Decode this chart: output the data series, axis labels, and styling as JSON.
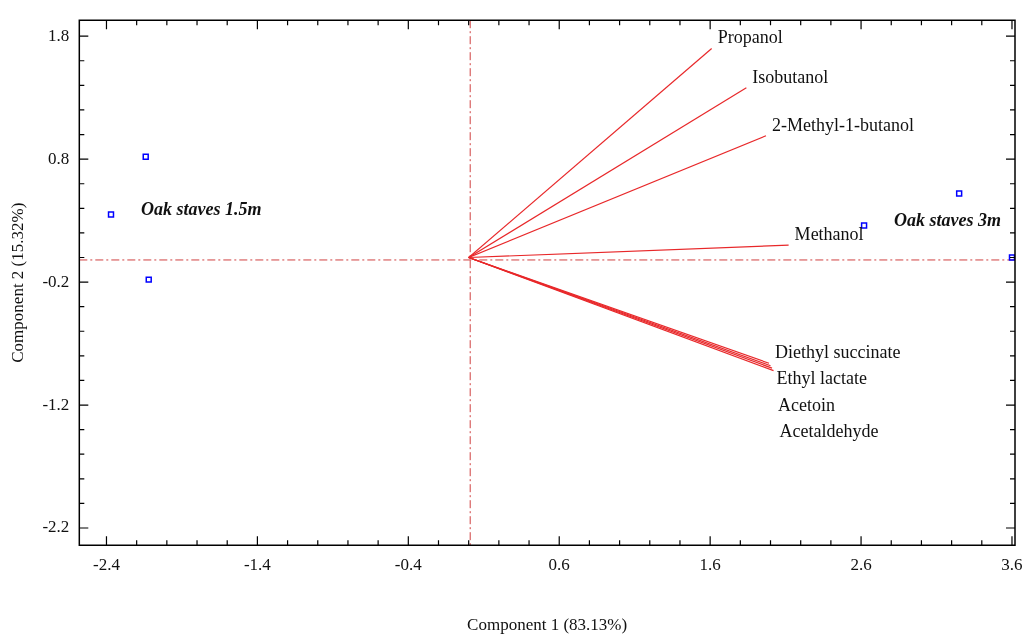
{
  "chart_data": {
    "type": "scatter",
    "xlabel": "Component 1 (83.13%)",
    "ylabel": "Component 2 (15.32%)",
    "xlim": [
      -2.58,
      3.62
    ],
    "ylim": [
      -2.34,
      1.93
    ],
    "xticks": [
      {
        "value": -2.4,
        "label": "-2.4"
      },
      {
        "value": -2.2,
        "label": null
      },
      {
        "value": -2.0,
        "label": null
      },
      {
        "value": -1.8,
        "label": null
      },
      {
        "value": -1.6,
        "label": null
      },
      {
        "value": -1.4,
        "label": "-1.4"
      },
      {
        "value": -1.2,
        "label": null
      },
      {
        "value": -1.0,
        "label": null
      },
      {
        "value": -0.8,
        "label": null
      },
      {
        "value": -0.6,
        "label": null
      },
      {
        "value": -0.4,
        "label": "-0.4"
      },
      {
        "value": -0.2,
        "label": null
      },
      {
        "value": 0,
        "label": null
      },
      {
        "value": 0.2,
        "label": null
      },
      {
        "value": 0.4,
        "label": null
      },
      {
        "value": 0.6,
        "label": "0.6"
      },
      {
        "value": 0.8,
        "label": null
      },
      {
        "value": 1.0,
        "label": null
      },
      {
        "value": 1.2,
        "label": null
      },
      {
        "value": 1.4,
        "label": null
      },
      {
        "value": 1.6,
        "label": "1.6"
      },
      {
        "value": 1.8,
        "label": null
      },
      {
        "value": 2.0,
        "label": null
      },
      {
        "value": 2.2,
        "label": null
      },
      {
        "value": 2.4,
        "label": null
      },
      {
        "value": 2.6,
        "label": "2.6"
      },
      {
        "value": 2.8,
        "label": null
      },
      {
        "value": 3.0,
        "label": null
      },
      {
        "value": 3.2,
        "label": null
      },
      {
        "value": 3.4,
        "label": null
      },
      {
        "value": 3.6,
        "label": "3.6"
      }
    ],
    "yticks": [
      {
        "value": -2.2,
        "label": "-2.2"
      },
      {
        "value": -2.0,
        "label": null
      },
      {
        "value": -1.8,
        "label": null
      },
      {
        "value": -1.6,
        "label": null
      },
      {
        "value": -1.4,
        "label": null
      },
      {
        "value": -1.2,
        "label": "-1.2"
      },
      {
        "value": -1.0,
        "label": null
      },
      {
        "value": -0.8,
        "label": null
      },
      {
        "value": -0.6,
        "label": null
      },
      {
        "value": -0.4,
        "label": null
      },
      {
        "value": -0.2,
        "label": "-0.2"
      },
      {
        "value": 0,
        "label": null
      },
      {
        "value": 0.2,
        "label": null
      },
      {
        "value": 0.4,
        "label": null
      },
      {
        "value": 0.6,
        "label": null
      },
      {
        "value": 0.8,
        "label": "0.8"
      },
      {
        "value": 1.0,
        "label": null
      },
      {
        "value": 1.2,
        "label": null
      },
      {
        "value": 1.4,
        "label": null
      },
      {
        "value": 1.6,
        "label": null
      },
      {
        "value": 1.8,
        "label": "1.8"
      }
    ],
    "grid": false,
    "legend": false,
    "series": [
      {
        "name": "Oak staves 1.5m",
        "marker": "square",
        "color": "#0000ff",
        "x": [
          -2.37,
          -2.14,
          -2.12
        ],
        "values": [
          0.35,
          0.82,
          -0.18
        ]
      },
      {
        "name": "Oak staves 3m",
        "marker": "square",
        "color": "#0000ff",
        "x": [
          2.62,
          3.25,
          3.6
        ],
        "values": [
          0.26,
          0.52,
          0.0
        ]
      },
      {
        "type": "line",
        "color": "#e8282a",
        "x": [
          0,
          1.61
        ],
        "values": [
          0,
          1.7
        ]
      },
      {
        "type": "line",
        "color": "#e8282a",
        "x": [
          0,
          1.84
        ],
        "values": [
          0,
          1.38
        ]
      },
      {
        "type": "line",
        "color": "#e8282a",
        "x": [
          0,
          1.97
        ],
        "values": [
          0,
          0.99
        ]
      },
      {
        "type": "line",
        "color": "#e8282a",
        "x": [
          0,
          2.12
        ],
        "values": [
          0,
          0.1
        ]
      },
      {
        "type": "line",
        "color": "#e8282a",
        "x": [
          0,
          1.99
        ],
        "values": [
          0,
          -0.86
        ]
      },
      {
        "type": "line",
        "color": "#e8282a",
        "x": [
          0,
          2.0
        ],
        "values": [
          0,
          -0.88
        ]
      },
      {
        "type": "line",
        "color": "#e8282a",
        "x": [
          0,
          2.01
        ],
        "values": [
          0,
          -0.9
        ]
      },
      {
        "type": "line",
        "color": "#e8282a",
        "x": [
          0,
          2.02
        ],
        "values": [
          0,
          -0.92
        ]
      }
    ],
    "ref_lines": [
      {
        "axis": "x",
        "value": 0.01,
        "color": "#d04040",
        "line_style": "dashed"
      },
      {
        "axis": "y",
        "value": -0.02,
        "color": "#d04040",
        "line_style": "dashed"
      }
    ],
    "annotations": [
      {
        "text": "Propanol",
        "x": 1.61,
        "y": 1.7
      },
      {
        "text": "Isobutanol",
        "x": 1.84,
        "y": 1.38
      },
      {
        "text": "2-Methyl-1-butanol",
        "x": 1.97,
        "y": 0.99
      },
      {
        "text": "Methanol",
        "x": 2.12,
        "y": 0.1
      },
      {
        "text": "Diethyl succinate",
        "x": 1.99,
        "y": -0.86
      },
      {
        "text": "Ethyl lactate",
        "x": 2.0,
        "y": -0.88
      },
      {
        "text": "Acetoin",
        "x": 2.01,
        "y": -0.9
      },
      {
        "text": "Acetaldehyde",
        "x": 2.02,
        "y": -0.92
      }
    ]
  }
}
